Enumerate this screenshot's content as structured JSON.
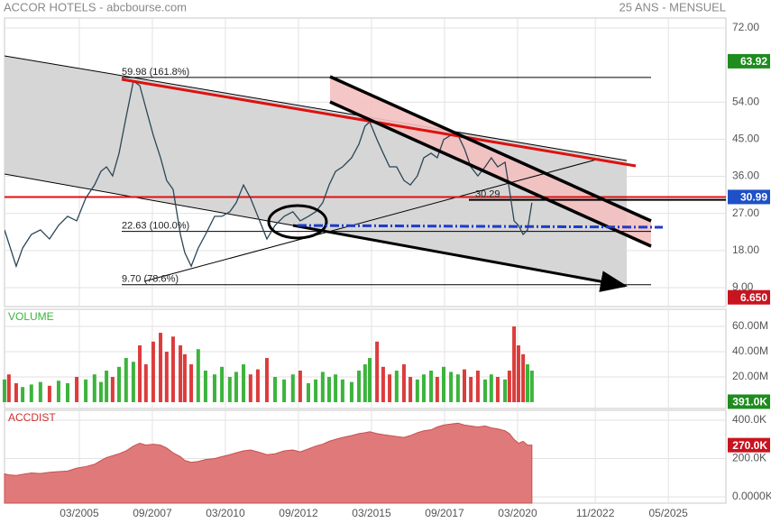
{
  "chart_data": {
    "type": "stock",
    "title": "ACCOR HOTELS - abcbourse.com",
    "subtitle": "25 ANS - MENSUEL",
    "x": [
      2002.61,
      2002.76,
      2003.01,
      2003.23,
      2003.53,
      2003.84,
      2004.15,
      2004.46,
      2004.77,
      2005.08,
      2005.39,
      2005.69,
      2005.91,
      2006.1,
      2006.31,
      2006.53,
      2006.77,
      2007.02,
      2007.24,
      2007.45,
      2007.7,
      2007.95,
      2008.16,
      2008.38,
      2008.63,
      2008.78,
      2009.0,
      2009.24,
      2009.49,
      2009.8,
      2010.05,
      2010.32,
      2010.54,
      2010.79,
      2011.03,
      2011.28,
      2011.59,
      2011.87,
      2012.18,
      2012.48,
      2012.73,
      2013.01,
      2013.26,
      2013.5,
      2013.72,
      2013.94,
      2014.18,
      2014.49,
      2014.74,
      2014.95,
      2015.11,
      2015.36,
      2015.57,
      2015.79,
      2016.03,
      2016.28,
      2016.5,
      2016.74,
      2016.96,
      2017.21,
      2017.42,
      2017.64,
      2017.89,
      2018.13,
      2018.35,
      2018.57,
      2018.81,
      2019.06,
      2019.27,
      2019.49,
      2019.74,
      2019.89,
      2020.05,
      2020.2,
      2020.36,
      2020.51,
      2020.66
    ],
    "xlim": [
      2002.61,
      2027.3
    ],
    "xticks": [
      {
        "value": 2005.17,
        "label": "03/2005"
      },
      {
        "value": 2007.67,
        "label": "09/2007"
      },
      {
        "value": 2010.17,
        "label": "03/2010"
      },
      {
        "value": 2012.67,
        "label": "09/2012"
      },
      {
        "value": 2015.17,
        "label": "03/2015"
      },
      {
        "value": 2017.67,
        "label": "09/2017"
      },
      {
        "value": 2020.17,
        "label": "03/2020"
      },
      {
        "value": 2022.83,
        "label": "11/2022"
      },
      {
        "value": 2025.33,
        "label": "05/2025"
      }
    ],
    "grid": true,
    "price": {
      "values": [
        23.0,
        19.7,
        14.2,
        18.6,
        21.9,
        23.0,
        20.8,
        24.1,
        26.3,
        25.2,
        30.7,
        33.9,
        37.2,
        38.3,
        36.1,
        41.6,
        50.3,
        59.1,
        58.0,
        52.5,
        46.0,
        40.5,
        35.0,
        32.8,
        21.9,
        17.5,
        14.2,
        18.6,
        21.9,
        26.3,
        26.3,
        27.4,
        29.6,
        33.9,
        30.7,
        26.3,
        20.8,
        24.1,
        26.3,
        27.4,
        25.2,
        26.3,
        27.4,
        29.6,
        33.9,
        37.2,
        38.3,
        40.5,
        43.8,
        48.2,
        49.2,
        44.9,
        41.6,
        38.3,
        38.3,
        35.0,
        33.9,
        36.1,
        40.5,
        41.6,
        40.5,
        44.9,
        46.0,
        46.0,
        42.7,
        38.3,
        36.1,
        38.3,
        40.5,
        38.3,
        39.4,
        32.8,
        25.2,
        24.1,
        21.9,
        23.0,
        29.6
      ],
      "color": "#2b4656",
      "ylim": [
        4.4,
        74.4
      ],
      "yticks": [
        {
          "value": 9,
          "label": "9.00"
        },
        {
          "value": 18,
          "label": "18.00"
        },
        {
          "value": 27,
          "label": "27.00"
        },
        {
          "value": 36,
          "label": "36.00"
        },
        {
          "value": 45,
          "label": "45.00"
        },
        {
          "value": 54,
          "label": "54.00"
        },
        {
          "value": 72,
          "label": "72.00"
        }
      ],
      "levels": [
        {
          "value": 59.98,
          "label": "59.98  (161.8%)"
        },
        {
          "value": 22.63,
          "label": "22.63  (100.0%)"
        },
        {
          "value": 9.7,
          "label": "9.70  (78.6%)"
        },
        {
          "value": 30.29,
          "label": "30.29"
        }
      ],
      "markers": [
        {
          "value": 63.92,
          "label": "63.92",
          "color": "#1e8c1e"
        },
        {
          "value": 30.99,
          "label": "30.99",
          "color": "#1e50c8",
          "line_color": "#e01010"
        },
        {
          "value": 6.65,
          "label": "6.650",
          "color": "#c81420"
        }
      ]
    },
    "volume": {
      "title": "VOLUME",
      "values": [
        18,
        22,
        15,
        12,
        14,
        16,
        13,
        17,
        15,
        20,
        18,
        22,
        16,
        25,
        20,
        28,
        35,
        32,
        45,
        30,
        48,
        55,
        40,
        52,
        45,
        38,
        30,
        42,
        25,
        22,
        28,
        20,
        24,
        30,
        22,
        26,
        35,
        20,
        18,
        22,
        25,
        15,
        18,
        24,
        20,
        22,
        18,
        16,
        25,
        30,
        35,
        48,
        28,
        22,
        25,
        30,
        20,
        18,
        22,
        25,
        20,
        28,
        24,
        22,
        26,
        20,
        25,
        18,
        22,
        20,
        18,
        25,
        60,
        45,
        38,
        30,
        25
      ],
      "up_color": "#3cb43c",
      "down_color": "#dc3c3c",
      "title_color": "#3cb43c",
      "ylim": [
        -5,
        73.6
      ],
      "yticks": [
        {
          "value": 20,
          "label": "20.00M"
        },
        {
          "value": 40,
          "label": "40.00M"
        },
        {
          "value": 60,
          "label": "60.00M"
        }
      ],
      "markers": [
        {
          "value": 0.391,
          "label": "391.0K",
          "color": "#1e8c1e"
        }
      ]
    },
    "accdist": {
      "title": "ACCDIST",
      "values": [
        120,
        115,
        112,
        118,
        125,
        122,
        128,
        132,
        135,
        150,
        158,
        170,
        190,
        205,
        215,
        225,
        240,
        265,
        280,
        270,
        275,
        270,
        255,
        230,
        210,
        190,
        180,
        185,
        195,
        200,
        210,
        220,
        230,
        240,
        245,
        235,
        220,
        225,
        240,
        245,
        235,
        250,
        265,
        275,
        290,
        300,
        310,
        320,
        330,
        335,
        340,
        330,
        325,
        320,
        315,
        310,
        320,
        335,
        345,
        350,
        365,
        375,
        380,
        385,
        375,
        370,
        365,
        370,
        360,
        355,
        345,
        330,
        300,
        280,
        290,
        270,
        270
      ],
      "color": "#e07a7a",
      "title_color": "#d03030",
      "ylim": [
        -33,
        452
      ],
      "yticks": [
        {
          "value": 0,
          "label": "0.0000K"
        },
        {
          "value": 200,
          "label": "200.0K"
        },
        {
          "value": 400,
          "label": "400.0K"
        }
      ],
      "markers": [
        {
          "value": 270,
          "label": "270.0K",
          "color": "#c81420"
        }
      ]
    }
  }
}
